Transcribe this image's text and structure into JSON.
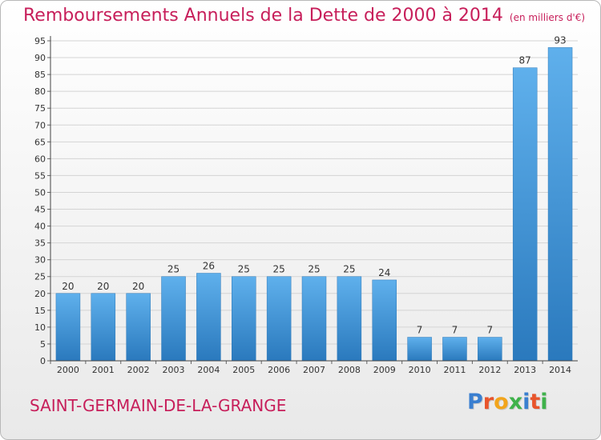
{
  "chart_data": {
    "type": "bar",
    "title": "Remboursements Annuels de la Dette de 2000 à 2014",
    "subtitle": "(en milliers d'€)",
    "categories": [
      "2000",
      "2001",
      "2002",
      "2003",
      "2004",
      "2005",
      "2006",
      "2007",
      "2008",
      "2009",
      "2010",
      "2011",
      "2012",
      "2013",
      "2014"
    ],
    "values": [
      20,
      20,
      20,
      25,
      26,
      25,
      25,
      25,
      25,
      24,
      7,
      7,
      7,
      87,
      93
    ],
    "ylim": [
      0,
      95
    ],
    "yticks": [
      0,
      5,
      10,
      15,
      20,
      25,
      30,
      35,
      40,
      45,
      50,
      55,
      60,
      65,
      70,
      75,
      80,
      85,
      90,
      95
    ],
    "grid": true,
    "xlabel": "",
    "ylabel": "",
    "bar_color": "#3f95d8"
  },
  "footer": {
    "commune": "SAINT-GERMAIN-DE-LA-GRANGE"
  },
  "logo": {
    "text": "Proxiti",
    "letter_colors": [
      "#3a7fd0",
      "#e8552c",
      "#f2a51c",
      "#3fb24b",
      "#3a7fd0",
      "#e8552c",
      "#3fb24b"
    ]
  }
}
